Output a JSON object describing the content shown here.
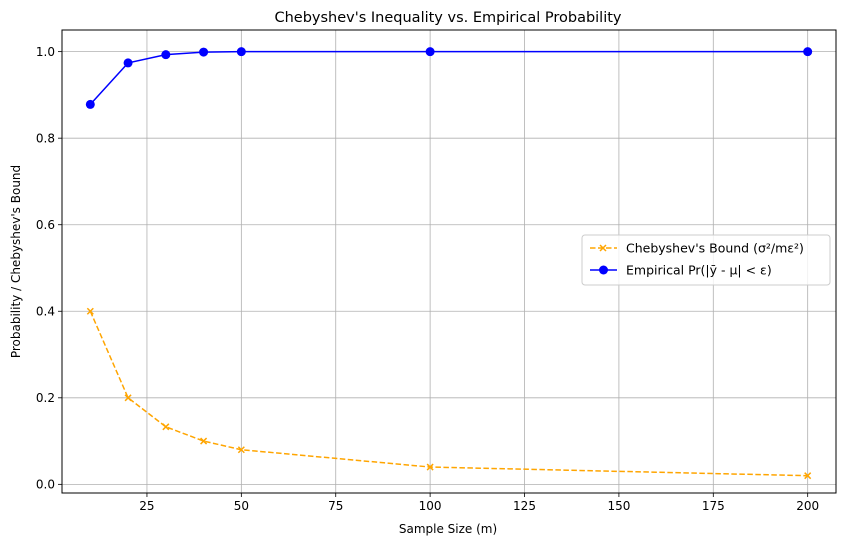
{
  "chart_data": {
    "type": "line",
    "title": "Chebyshev's Inequality vs. Empirical Probability",
    "xlabel": "Sample Size (m)",
    "ylabel": "Probability / Chebyshev's Bound",
    "xlim": [
      2.5,
      207.5
    ],
    "ylim": [
      -0.02,
      1.05
    ],
    "xticks": [
      25,
      50,
      75,
      100,
      125,
      150,
      175,
      200
    ],
    "yticks": [
      0.0,
      0.2,
      0.4,
      0.6,
      0.8,
      1.0
    ],
    "xtick_labels": [
      "25",
      "50",
      "75",
      "100",
      "125",
      "150",
      "175",
      "200"
    ],
    "ytick_labels": [
      "0.0",
      "0.2",
      "0.4",
      "0.6",
      "0.8",
      "1.0"
    ],
    "grid": true,
    "legend_position": "center-right",
    "x": [
      10,
      20,
      30,
      40,
      50,
      100,
      200
    ],
    "series": [
      {
        "name": "Chebyshev's Bound (σ²/mε²)",
        "values": [
          0.4,
          0.2,
          0.133,
          0.1,
          0.08,
          0.04,
          0.02
        ],
        "color": "#ffa500",
        "line_style": "dashed",
        "marker": "x"
      },
      {
        "name": "Empirical Pr(|ȳ - μ| < ε)",
        "values": [
          0.878,
          0.974,
          0.993,
          0.999,
          1.0,
          1.0,
          1.0
        ],
        "color": "#0000ff",
        "line_style": "solid",
        "marker": "o"
      }
    ]
  }
}
